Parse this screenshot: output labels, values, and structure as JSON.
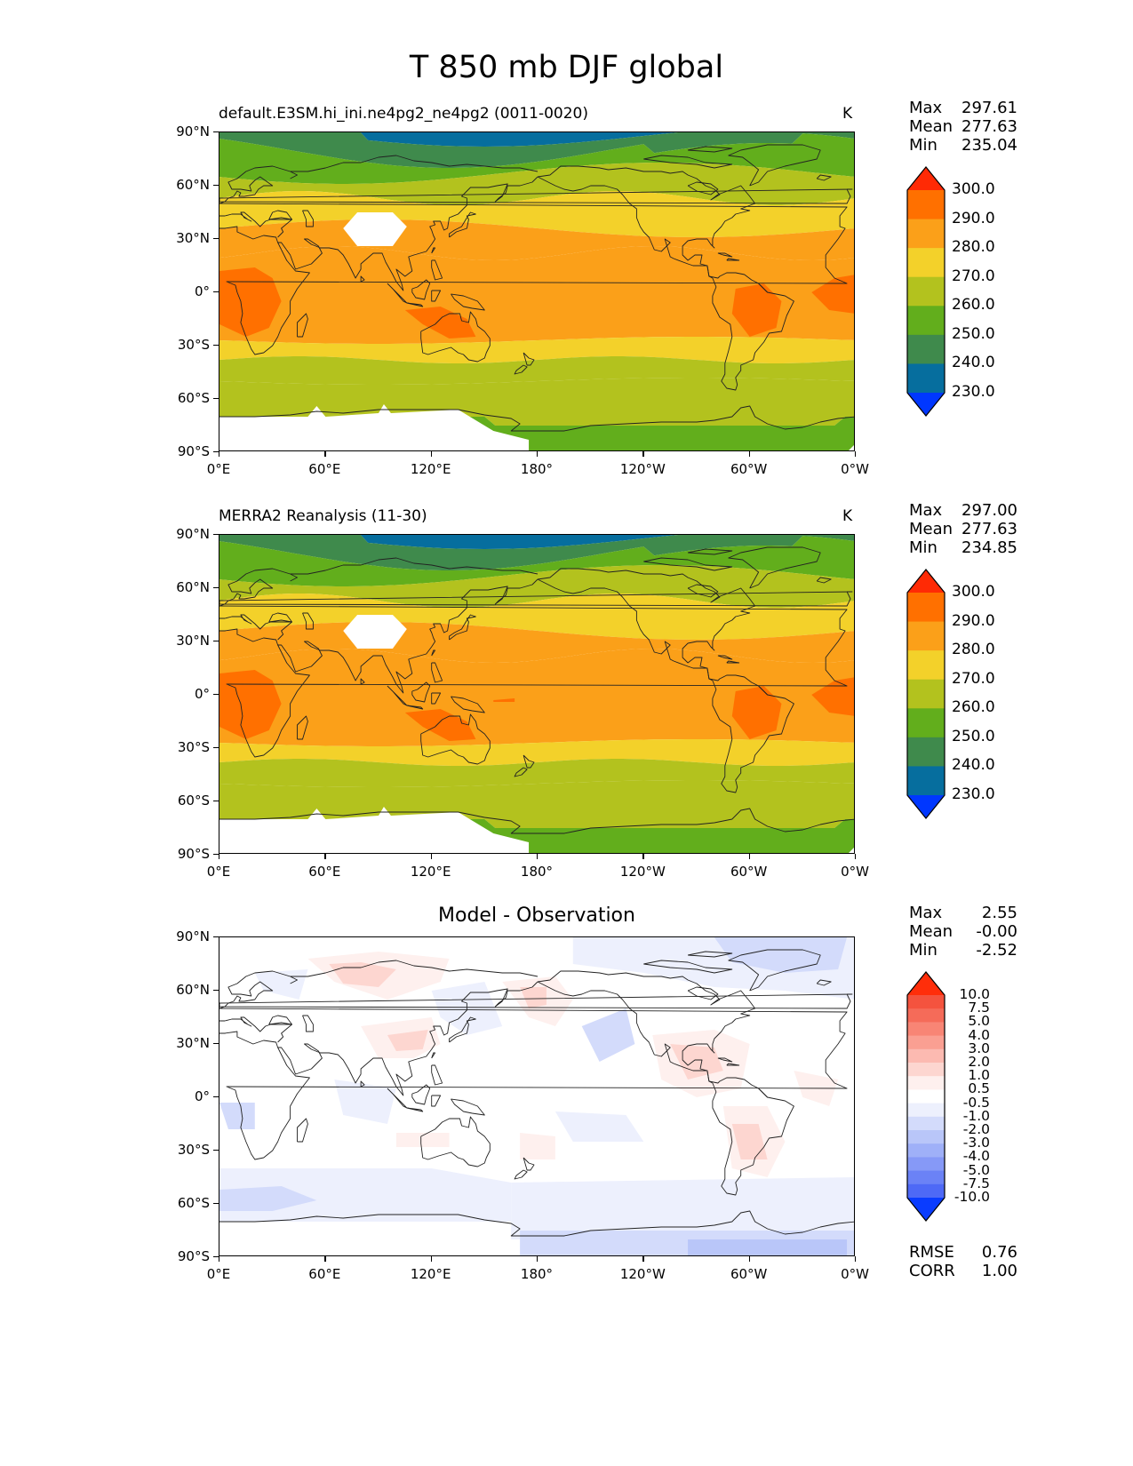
{
  "figure": {
    "title": "T 850 mb DJF global"
  },
  "axes": {
    "lat_ticks": [
      "90°N",
      "60°N",
      "30°N",
      "0°",
      "30°S",
      "60°S",
      "90°S"
    ],
    "lon_ticks": [
      "0°E",
      "60°E",
      "120°E",
      "180°",
      "120°W",
      "60°W",
      "0°W"
    ]
  },
  "panels": [
    {
      "title": "default.E3SM.hi_ini.ne4pg2_ne4pg2 (0011-0020)",
      "units": "K",
      "stats": [
        {
          "label": "Max",
          "value": "297.61"
        },
        {
          "label": "Mean",
          "value": "277.63"
        },
        {
          "label": "Min",
          "value": "235.04"
        }
      ]
    },
    {
      "title": "MERRA2 Reanalysis (11-30)",
      "units": "K",
      "stats": [
        {
          "label": "Max",
          "value": "297.00"
        },
        {
          "label": "Mean",
          "value": "277.63"
        },
        {
          "label": "Min",
          "value": "234.85"
        }
      ]
    },
    {
      "title": "Model - Observation",
      "units": "",
      "stats": [
        {
          "label": "Max",
          "value": "2.55"
        },
        {
          "label": "Mean",
          "value": "-0.00"
        },
        {
          "label": "Min",
          "value": "-2.52"
        }
      ],
      "metrics": [
        {
          "label": "RMSE",
          "value": "0.76"
        },
        {
          "label": "CORR",
          "value": "1.00"
        }
      ]
    }
  ],
  "colorbars": {
    "temperature": {
      "labels": [
        "300.0",
        "290.0",
        "280.0",
        "270.0",
        "260.0",
        "250.0",
        "240.0",
        "230.0"
      ],
      "colors": [
        "#ff2a05",
        "#ff7000",
        "#fba019",
        "#f3d12a",
        "#b3c21e",
        "#62ae1c",
        "#3f8a4c",
        "#066e9e",
        "#0037ff"
      ]
    },
    "difference": {
      "labels": [
        "10.0",
        "7.5",
        "5.0",
        "4.0",
        "3.0",
        "2.0",
        "1.0",
        "0.5",
        "-0.5",
        "-1.0",
        "-2.0",
        "-3.0",
        "-4.0",
        "-5.0",
        "-7.5",
        "-10.0"
      ],
      "colors": [
        "#ff2e0a",
        "#f4533e",
        "#f56b59",
        "#f88575",
        "#fa9f92",
        "#fcbab1",
        "#fdd6d0",
        "#fef0ee",
        "#ffffff",
        "#edf0fd",
        "#d3dbfb",
        "#b9c6f9",
        "#9fb0f8",
        "#8699f7",
        "#6b82f6",
        "#4e69f6",
        "#0a3cff"
      ]
    }
  },
  "chart_data": {
    "type": "heatmap",
    "title": "T 850 mb DJF global",
    "xlabel": "",
    "ylabel": "",
    "x_ticks": [
      "0°E",
      "60°E",
      "120°E",
      "180°",
      "120°W",
      "60°W",
      "0°W"
    ],
    "y_ticks": [
      "90°N",
      "60°N",
      "30°N",
      "0°",
      "30°S",
      "60°S",
      "90°S"
    ],
    "xlim": [
      0,
      360
    ],
    "ylim": [
      -90,
      90
    ],
    "series": [
      {
        "name": "default.E3SM.hi_ini.ne4pg2_ne4pg2 (0011-0020)",
        "units": "K",
        "max": 297.61,
        "mean": 277.63,
        "min": 235.04,
        "levels": [
          230,
          240,
          250,
          260,
          270,
          280,
          290,
          300
        ]
      },
      {
        "name": "MERRA2 Reanalysis (11-30)",
        "units": "K",
        "max": 297.0,
        "mean": 277.63,
        "min": 234.85,
        "levels": [
          230,
          240,
          250,
          260,
          270,
          280,
          290,
          300
        ]
      },
      {
        "name": "Model - Observation",
        "max": 2.55,
        "mean": -0.0,
        "min": -2.52,
        "rmse": 0.76,
        "corr": 1.0,
        "levels": [
          -10,
          -7.5,
          -5,
          -4,
          -3,
          -2,
          -1,
          -0.5,
          0.5,
          1,
          2,
          3,
          4,
          5,
          7.5,
          10
        ]
      }
    ]
  }
}
